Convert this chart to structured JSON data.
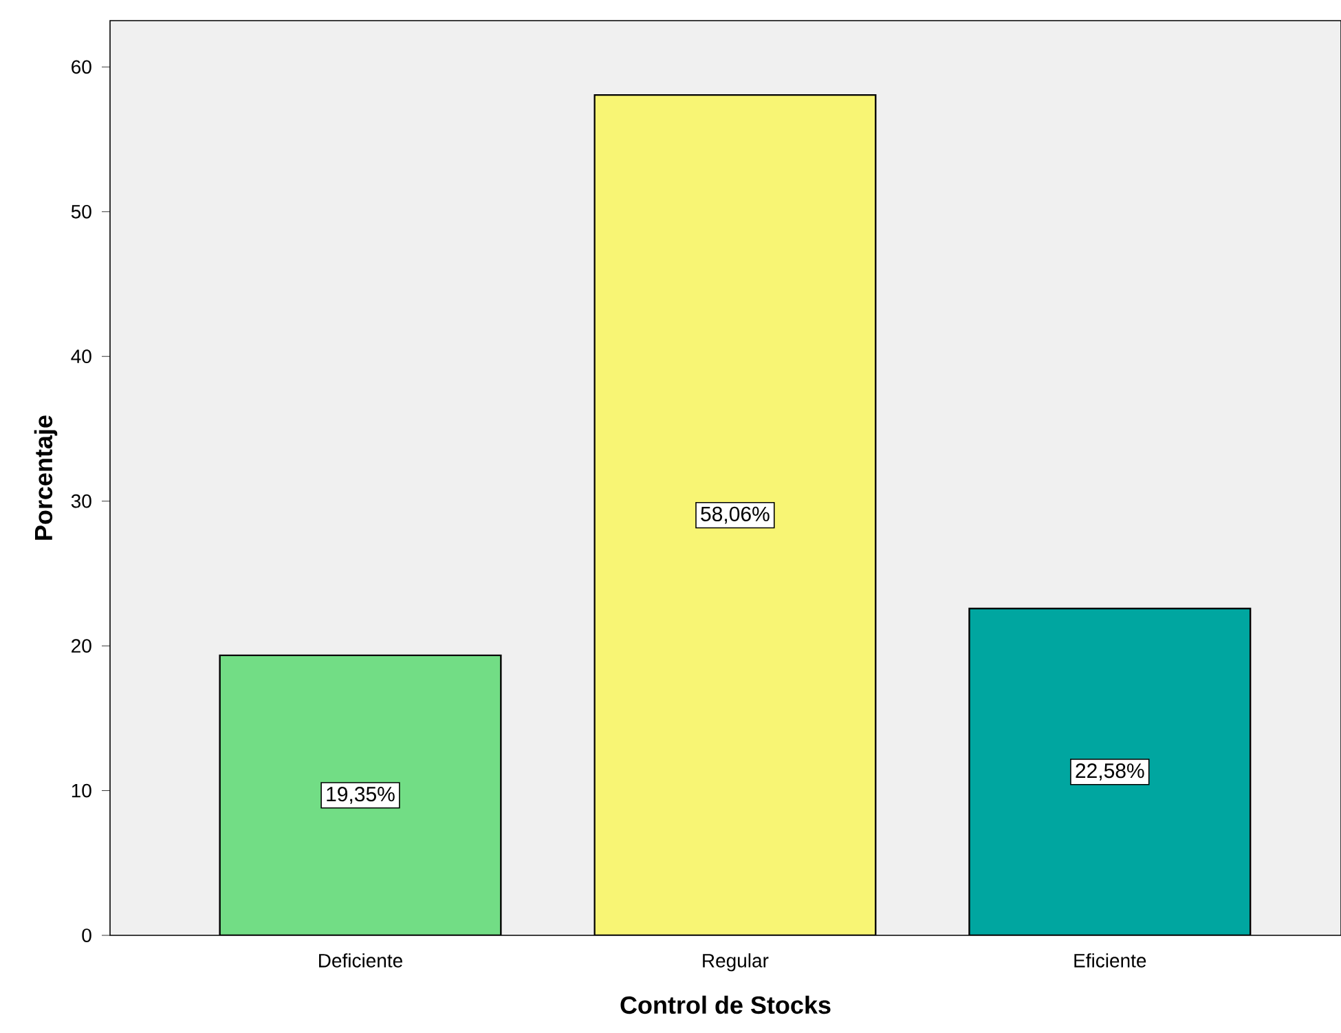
{
  "chart_data": {
    "type": "bar",
    "xlabel": "Control de Stocks",
    "ylabel": "Porcentaje",
    "categories": [
      "Deficiente",
      "Regular",
      "Eficiente"
    ],
    "values": [
      19.35,
      58.06,
      22.58
    ],
    "value_labels": [
      "19,35%",
      "58,06%",
      "22,58%"
    ],
    "colors": [
      "#72dd85",
      "#f8f574",
      "#00a6a0"
    ],
    "ylim": [
      0,
      63.2
    ],
    "yticks": [
      0,
      10,
      20,
      30,
      40,
      50,
      60
    ],
    "grid": false
  }
}
